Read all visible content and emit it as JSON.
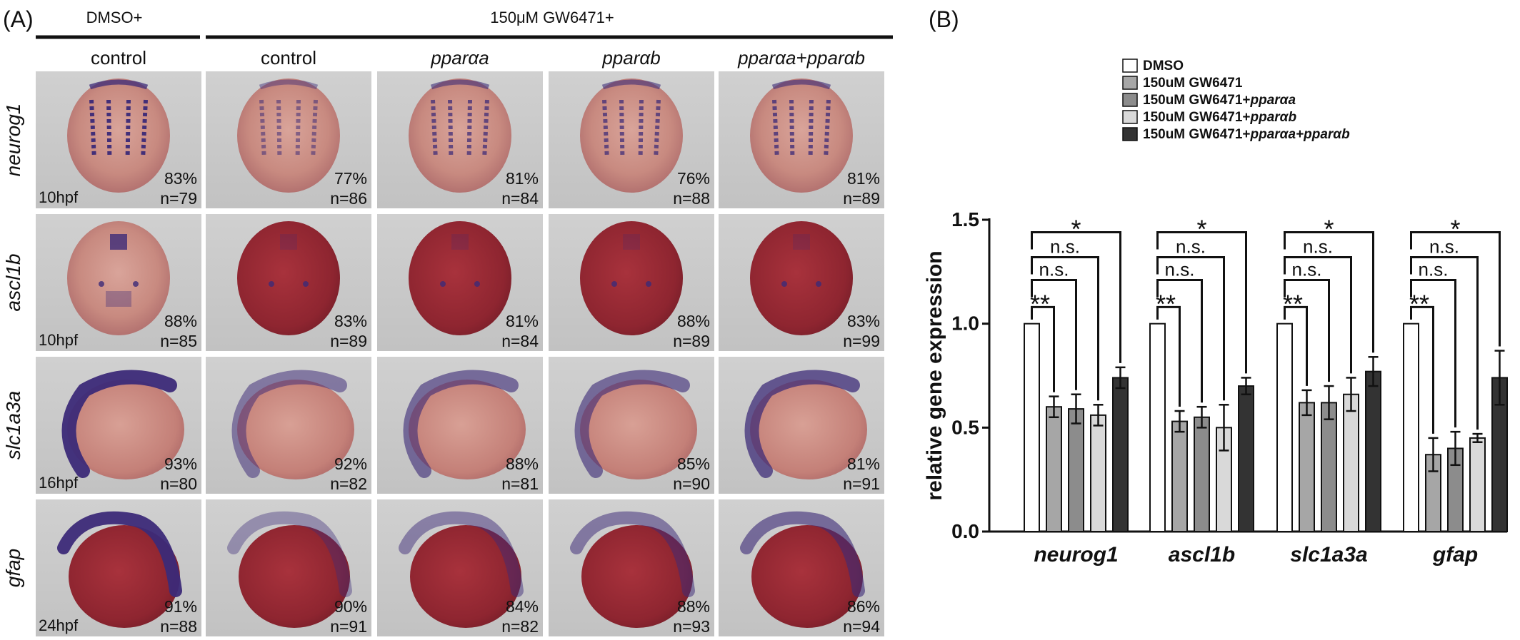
{
  "panel_a": {
    "label": "(A)",
    "group_dmso": "DMSO+",
    "group_gw": "150μM GW6471+",
    "columns": [
      {
        "label": "control",
        "italic": false
      },
      {
        "label": "control",
        "italic": false
      },
      {
        "label": "pparαa",
        "italic": true
      },
      {
        "label": "pparαb",
        "italic": true
      },
      {
        "label": "pparαa+pparαb",
        "italic": true
      }
    ],
    "rows": [
      {
        "gene": "neurog1",
        "stage": "10hpf",
        "stain": "dorsal-stripes",
        "cells": [
          {
            "pct": "83%",
            "n": "n=79"
          },
          {
            "pct": "77%",
            "n": "n=86"
          },
          {
            "pct": "81%",
            "n": "n=84"
          },
          {
            "pct": "76%",
            "n": "n=88"
          },
          {
            "pct": "81%",
            "n": "n=89"
          }
        ]
      },
      {
        "gene": "ascl1b",
        "stage": "10hpf",
        "stain": "dorsal-dots",
        "cells": [
          {
            "pct": "88%",
            "n": "n=85"
          },
          {
            "pct": "83%",
            "n": "n=89"
          },
          {
            "pct": "81%",
            "n": "n=84"
          },
          {
            "pct": "88%",
            "n": "n=89"
          },
          {
            "pct": "83%",
            "n": "n=99"
          }
        ]
      },
      {
        "gene": "slc1a3a",
        "stage": "16hpf",
        "stain": "lateral-curve",
        "cells": [
          {
            "pct": "93%",
            "n": "n=80"
          },
          {
            "pct": "92%",
            "n": "n=82"
          },
          {
            "pct": "88%",
            "n": "n=81"
          },
          {
            "pct": "85%",
            "n": "n=90"
          },
          {
            "pct": "81%",
            "n": "n=91"
          }
        ]
      },
      {
        "gene": "gfap",
        "stage": "24hpf",
        "stain": "lateral-head",
        "cells": [
          {
            "pct": "91%",
            "n": "n=88"
          },
          {
            "pct": "90%",
            "n": "n=91"
          },
          {
            "pct": "84%",
            "n": "n=82"
          },
          {
            "pct": "88%",
            "n": "n=93"
          },
          {
            "pct": "86%",
            "n": "n=94"
          }
        ]
      }
    ],
    "stain_intensity": [
      [
        1.0,
        0.45,
        0.7,
        0.7,
        0.75
      ],
      [
        1.0,
        0.2,
        0.2,
        0.15,
        0.3
      ],
      [
        1.0,
        0.5,
        0.6,
        0.6,
        0.75
      ],
      [
        1.0,
        0.35,
        0.45,
        0.5,
        0.6
      ]
    ],
    "colors": {
      "tile_bg": "#c8c8c8",
      "embryo": "#c88a80",
      "yolk_dark": "#9e2a34",
      "stain": "#3c2a78"
    }
  },
  "panel_b": {
    "label": "(B)",
    "chart_data": {
      "type": "bar",
      "categories": [
        "neurog1",
        "ascl1b",
        "slc1a3a",
        "gfap"
      ],
      "series": [
        {
          "name": "DMSO",
          "values": [
            1.0,
            1.0,
            1.0,
            1.0
          ],
          "errors": [
            0,
            0,
            0,
            0
          ],
          "color": "#ffffff"
        },
        {
          "name": "150uM GW6471",
          "values": [
            0.6,
            0.53,
            0.62,
            0.37
          ],
          "errors": [
            0.05,
            0.05,
            0.06,
            0.08
          ],
          "color": "#a6a6a6"
        },
        {
          "name_prefix": "150uM GW6471+",
          "name_italic": "pparαa",
          "values": [
            0.59,
            0.55,
            0.62,
            0.4
          ],
          "errors": [
            0.07,
            0.05,
            0.08,
            0.08
          ],
          "color": "#8c8c8c"
        },
        {
          "name_prefix": "150uM GW6471+",
          "name_italic": "pparαb",
          "values": [
            0.56,
            0.5,
            0.66,
            0.45
          ],
          "errors": [
            0.05,
            0.11,
            0.08,
            0.02
          ],
          "color": "#d9d9d9"
        },
        {
          "name_prefix": "150uM GW6471+",
          "name_italic": "pparαa+pparαb",
          "values": [
            0.74,
            0.7,
            0.77,
            0.74
          ],
          "errors": [
            0.05,
            0.04,
            0.07,
            0.13
          ],
          "color": "#333333"
        }
      ],
      "ylabel": "relative gene expression",
      "ylim": [
        0,
        1.5
      ],
      "yticks": [
        "0.0",
        "0.5",
        "1.0",
        "1.5"
      ],
      "significance": [
        {
          "compare_to": 1,
          "label": "**"
        },
        {
          "compare_to": 2,
          "label": "n.s."
        },
        {
          "compare_to": 3,
          "label": "n.s."
        },
        {
          "compare_to": 4,
          "label": "*"
        }
      ],
      "legend_position": "top-right"
    }
  }
}
